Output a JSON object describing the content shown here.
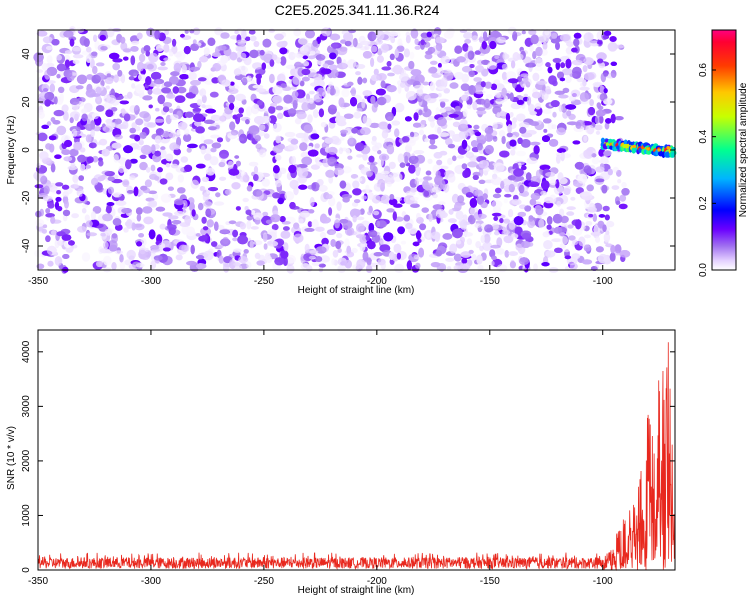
{
  "chart_data": [
    {
      "type": "heatmap",
      "title": "C2E5.2025.341.11.36.R24",
      "xlabel": "Height of straight line (km)",
      "ylabel": "Frequency (Hz)",
      "xlim": [
        -350,
        -68
      ],
      "ylim": [
        -50,
        50
      ],
      "x_ticks": [
        -350,
        -300,
        -250,
        -200,
        -150,
        -100
      ],
      "y_ticks": [
        -40,
        -20,
        0,
        20,
        40
      ],
      "colorbar": {
        "label": "Normalized spectral amplitude",
        "range": [
          0,
          0.72
        ],
        "ticks": [
          "0.0",
          "0.2",
          "0.4",
          "0.6"
        ],
        "colors": [
          "#ffffff",
          "#d2b4ff",
          "#8a2be2",
          "#5a00ff",
          "#0000ff",
          "#00c8ff",
          "#00ff88",
          "#ffff00",
          "#ff8800",
          "#ff0000",
          "#ff0088"
        ]
      },
      "noise_amplitude_range": [
        0.0,
        0.12
      ],
      "signal_region": {
        "x_range": [
          -100,
          -68
        ],
        "frequency_hz": 3,
        "peak_amplitude": 0.6
      },
      "empty_region_x_from": -96,
      "grid": false,
      "legend": "colorbar right"
    },
    {
      "type": "line",
      "xlabel": "Height of straight line (km)",
      "ylabel": "SNR (10 * v/v)",
      "xlim": [
        -350,
        -68
      ],
      "ylim": [
        0,
        4400
      ],
      "x_ticks": [
        -350,
        -300,
        -250,
        -200,
        -150,
        -100
      ],
      "y_ticks": [
        0,
        1000,
        2000,
        3000,
        4000
      ],
      "series": [
        {
          "color": "#e8281e",
          "baseline_band": [
            80,
            320
          ],
          "points": [
            [
              -350,
              120
            ],
            [
              -320,
              180
            ],
            [
              -300,
              170
            ],
            [
              -250,
              190
            ],
            [
              -200,
              170
            ],
            [
              -150,
              160
            ],
            [
              -110,
              170
            ],
            [
              -100,
              250
            ],
            [
              -97,
              350
            ],
            [
              -95,
              500
            ],
            [
              -92,
              900
            ],
            [
              -90,
              1000
            ],
            [
              -88,
              1500
            ],
            [
              -85,
              1100
            ],
            [
              -83,
              2100
            ],
            [
              -81,
              1700
            ],
            [
              -80,
              3100
            ],
            [
              -78,
              2500
            ],
            [
              -77,
              2100
            ],
            [
              -75,
              3900
            ],
            [
              -73,
              4000
            ],
            [
              -72,
              3700
            ],
            [
              -71,
              4350
            ],
            [
              -70,
              3100
            ],
            [
              -69,
              2300
            ],
            [
              -68,
              1700
            ]
          ]
        }
      ],
      "grid": false
    }
  ]
}
